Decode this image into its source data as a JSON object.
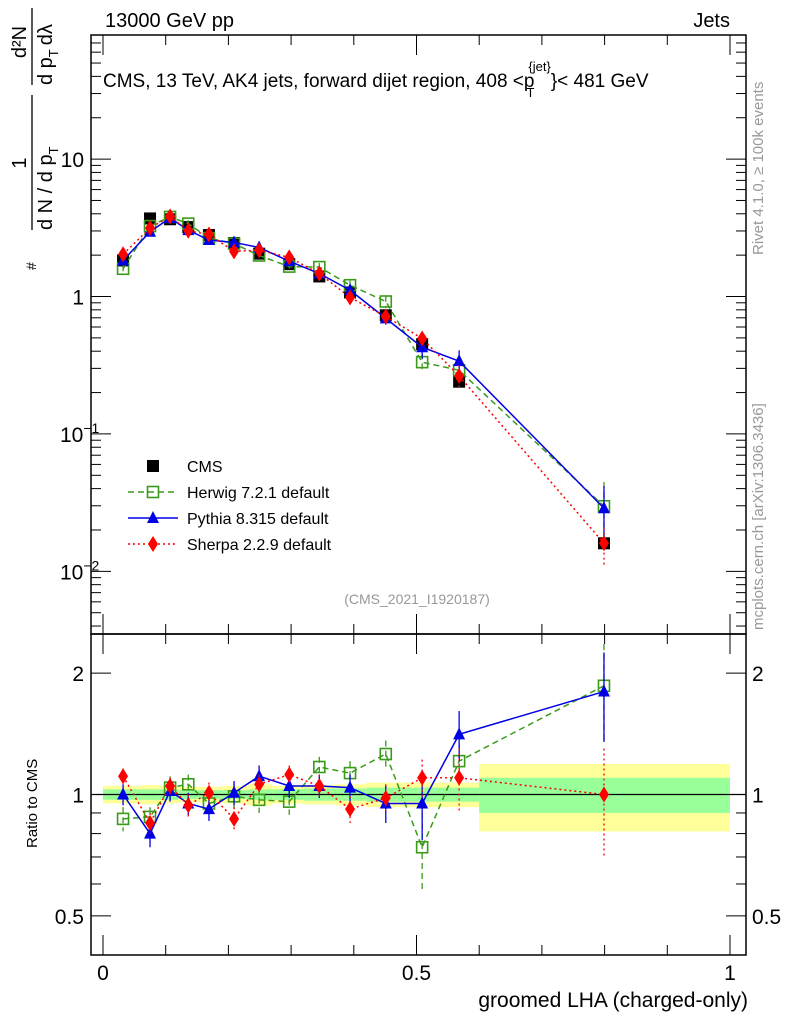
{
  "header": {
    "left": "13000 GeV pp",
    "right": "Jets"
  },
  "side_labels": {
    "rivet": "Rivet 4.1.0, ≥ 100k events",
    "mcplots": "mcplots.cern.ch [arXiv:1306.3436]"
  },
  "colors": {
    "cms": "#000000",
    "herwig": "#3a9a1a",
    "pythia": "#0000e6",
    "sherpa": "#ff0000",
    "stat_band": "#99ff99",
    "syst_band": "#ffff99",
    "watermark": "#999999"
  },
  "chart_data": [
    {
      "type": "scatter",
      "title": "CMS, 13 TeV, AK4 jets, forward dijet region, 408 <p_T^{jet}< 481 GeV",
      "title_parts": {
        "main": "CMS, 13 TeV, AK4 jets, forward dijet region, 408 <p",
        "sub": "T",
        "sup": "{jet}",
        "tail": "}< 481 GeV"
      },
      "ylabel": "1/N dN/dp_T · d²N/(dp_T dλ)",
      "ylabel_parts": {
        "num1": "1",
        "den1": "d N / d p",
        "den1_sub": "T",
        "hash": "#",
        "num2": "d²N",
        "den2": "d p",
        "den2_sub": "T",
        "den2_tail": "dλ"
      },
      "yscale": "log",
      "ylim": [
        0.0035,
        80
      ],
      "yticks": [
        {
          "value": 10,
          "label": "10"
        },
        {
          "value": 1,
          "label": "1"
        },
        {
          "value": 0.1,
          "label": "10",
          "exp": "−1"
        },
        {
          "value": 0.01,
          "label": "10",
          "exp": "−2"
        }
      ],
      "xlim": [
        0,
        1
      ],
      "bin_edges": [
        0,
        0.06,
        0.09,
        0.12,
        0.15,
        0.19,
        0.23,
        0.27,
        0.32,
        0.37,
        0.42,
        0.48,
        0.54,
        0.6,
        1.0
      ],
      "x": [
        0.032,
        0.075,
        0.107,
        0.136,
        0.169,
        0.209,
        0.249,
        0.297,
        0.345,
        0.394,
        0.451,
        0.509,
        0.568,
        0.799
      ],
      "cms": [
        1.83,
        3.7,
        3.65,
        3.2,
        2.8,
        2.45,
        2.05,
        1.72,
        1.4,
        1.07,
        0.73,
        0.45,
        0.24,
        0.016
      ],
      "legend": {
        "position": "bottom-left",
        "entries": [
          "CMS",
          "Herwig 7.2.1 default",
          "Pythia 8.315 default",
          "Sherpa 2.2.9 default"
        ]
      },
      "watermark": "(CMS_2021_I1920187)"
    },
    {
      "type": "scatter",
      "ylabel": "Ratio to CMS",
      "xlabel": "groomed LHA (charged-only)",
      "yscale": "log",
      "ylim": [
        0.4,
        2.5
      ],
      "yticks": [
        {
          "value": 2,
          "label": "2"
        },
        {
          "value": 1,
          "label": "1"
        },
        {
          "value": 0.5,
          "label": "0.5"
        }
      ],
      "xticks": [
        {
          "value": 0,
          "label": "0"
        },
        {
          "value": 0.5,
          "label": "0.5"
        },
        {
          "value": 1,
          "label": "1"
        }
      ],
      "stat_band": [
        0.03,
        0.03,
        0.03,
        0.025,
        0.025,
        0.025,
        0.03,
        0.03,
        0.035,
        0.035,
        0.04,
        0.04,
        0.04,
        0.1
      ],
      "syst_band": [
        0.05,
        0.055,
        0.05,
        0.045,
        0.045,
        0.05,
        0.06,
        0.05,
        0.055,
        0.06,
        0.07,
        0.07,
        0.07,
        0.19
      ],
      "series": [
        {
          "name": "Herwig 7.2.1 default",
          "key": "herwig",
          "marker": "open-square",
          "line": "dashed",
          "values": [
            0.87,
            0.88,
            1.04,
            1.06,
            0.95,
            0.99,
            0.97,
            0.96,
            1.17,
            1.13,
            1.26,
            0.74,
            1.21,
            1.86
          ],
          "err": [
            0.06,
            0.05,
            0.07,
            0.06,
            0.06,
            0.07,
            0.07,
            0.07,
            0.07,
            0.08,
            0.1,
            0.16,
            0.12,
            0.5
          ]
        },
        {
          "name": "Pythia 8.315 default",
          "key": "pythia",
          "marker": "triangle",
          "line": "solid",
          "values": [
            1.0,
            0.8,
            1.02,
            0.95,
            0.92,
            1.01,
            1.11,
            1.05,
            1.05,
            1.04,
            0.95,
            0.95,
            1.41,
            1.8
          ],
          "err": [
            0.06,
            0.06,
            0.06,
            0.06,
            0.06,
            0.07,
            0.07,
            0.07,
            0.07,
            0.08,
            0.1,
            0.18,
            0.2,
            0.45
          ]
        },
        {
          "name": "Sherpa 2.2.9 default",
          "key": "sherpa",
          "marker": "diamond",
          "line": "dotted",
          "values": [
            1.11,
            0.85,
            1.05,
            0.94,
            1.01,
            0.87,
            1.06,
            1.12,
            1.05,
            0.92,
            0.98,
            1.1,
            1.1,
            1.0
          ],
          "err": [
            0.05,
            0.05,
            0.05,
            0.06,
            0.06,
            0.06,
            0.06,
            0.06,
            0.07,
            0.07,
            0.08,
            0.12,
            0.2,
            0.3
          ]
        }
      ]
    }
  ]
}
